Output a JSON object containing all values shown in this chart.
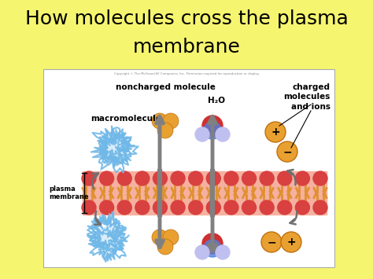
{
  "title_line1": "How molecules cross the plasma",
  "title_line2": "membrane",
  "title_fontsize": 18,
  "background_color": "#f5f570",
  "panel_bg": "#ffffff",
  "copyright_text": "Copyright © The McGraw-Hill Companies, Inc. Permission required for reproduction or display.",
  "labels": {
    "noncharged_molecule": "noncharged molecule",
    "h2o": "H₂O",
    "charged": "charged\nmolecules\nand ions",
    "macromolecule": "macromolecule",
    "plasma_membrane": "plasma\nmembrane"
  },
  "mem_red": "#d94040",
  "mem_orange": "#e09030",
  "mem_pink_bg": "#f5b0a0",
  "blob_color": "#70b8e8",
  "nc_ball_color": "#e8a030",
  "ion_color": "#e8a030",
  "arrow_gray": "#808080"
}
